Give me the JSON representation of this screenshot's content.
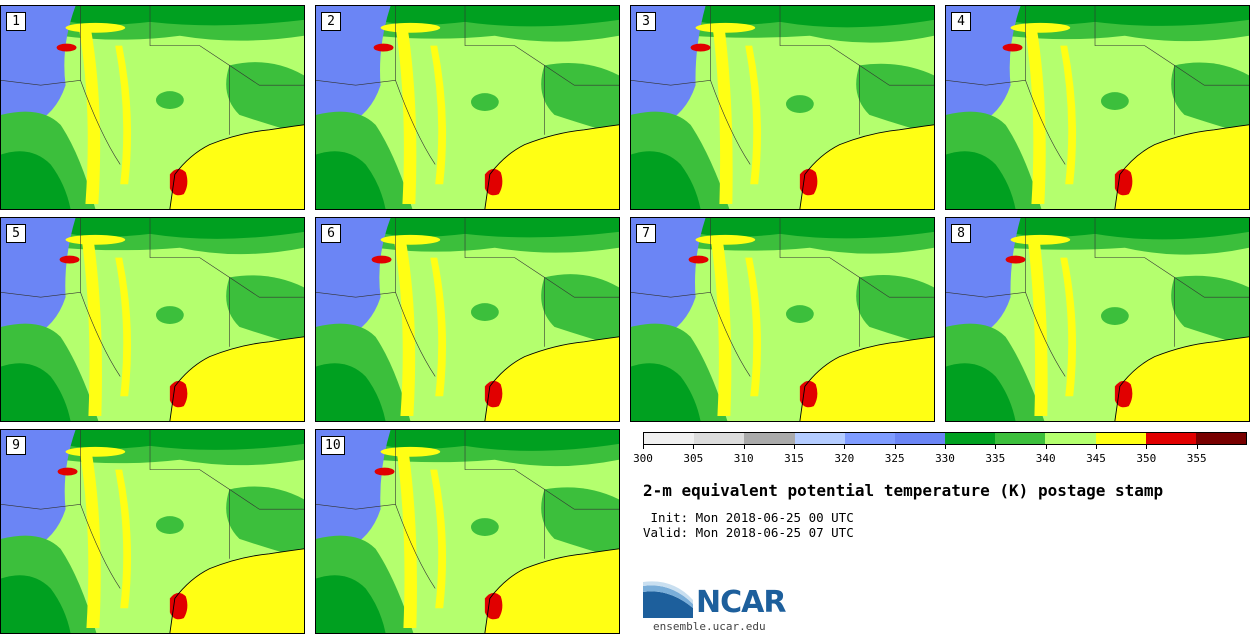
{
  "figure": {
    "title": "2-m equivalent potential temperature (K) postage stamp",
    "init": " Init: Mon 2018-06-25 00 UTC",
    "valid": "Valid: Mon 2018-06-25 07 UTC"
  },
  "members": [
    "1",
    "2",
    "3",
    "4",
    "5",
    "6",
    "7",
    "8",
    "9",
    "10"
  ],
  "colorbar": {
    "ticks": [
      "300",
      "305",
      "310",
      "315",
      "320",
      "325",
      "330",
      "335",
      "340",
      "345",
      "350",
      "355"
    ],
    "colors": [
      "#f0f0f0",
      "#dcdcdc",
      "#aaaaaa",
      "#b4ccff",
      "#7f9cff",
      "#6b85f5",
      "#00a020",
      "#3cbf3c",
      "#b4ff6e",
      "#ffff14",
      "#e10000",
      "#780000"
    ]
  },
  "logo": {
    "text": "NCAR",
    "url": "ensemble.ucar.edu"
  }
}
